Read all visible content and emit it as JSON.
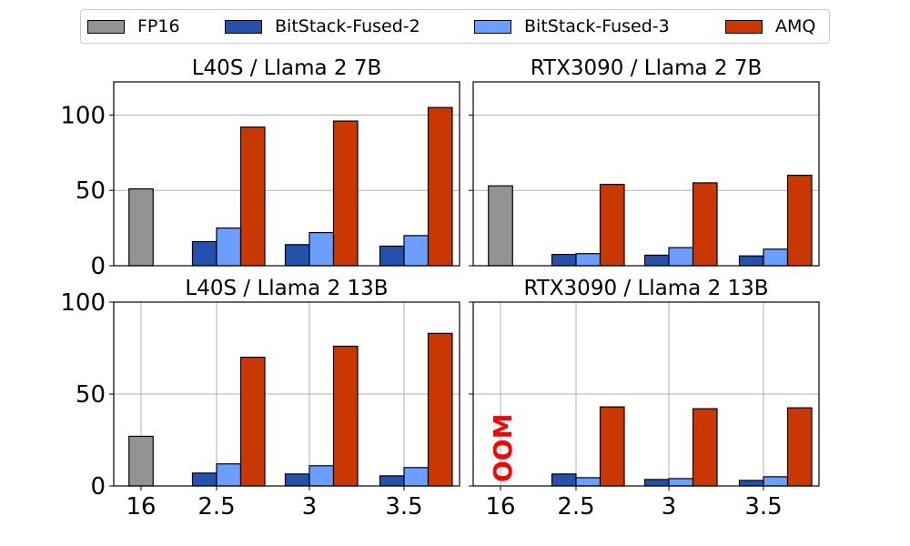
{
  "legend": {
    "items": [
      {
        "label": "FP16",
        "color": "#939393"
      },
      {
        "label": "BitStack-Fused-2",
        "color": "#2451ad"
      },
      {
        "label": "BitStack-Fused-3",
        "color": "#6b9eff"
      },
      {
        "label": "AMQ",
        "color": "#c93703"
      }
    ]
  },
  "chart_data": [
    {
      "type": "bar",
      "title": "L40S / Llama 2 7B",
      "categories": [
        "16",
        "2.5",
        "3",
        "3.5"
      ],
      "series": [
        {
          "name": "FP16",
          "values": [
            51,
            null,
            null,
            null
          ]
        },
        {
          "name": "BitStack-Fused-2",
          "values": [
            null,
            16,
            14,
            13
          ]
        },
        {
          "name": "BitStack-Fused-3",
          "values": [
            null,
            25,
            22,
            20
          ]
        },
        {
          "name": "AMQ",
          "values": [
            null,
            92,
            96,
            105
          ]
        }
      ],
      "ylim": [
        0,
        122
      ],
      "yticks": [
        0,
        50,
        100
      ],
      "grid": "horizontal"
    },
    {
      "type": "bar",
      "title": "RTX3090 / Llama 2 7B",
      "categories": [
        "16",
        "2.5",
        "3",
        "3.5"
      ],
      "series": [
        {
          "name": "FP16",
          "values": [
            53,
            null,
            null,
            null
          ]
        },
        {
          "name": "BitStack-Fused-2",
          "values": [
            null,
            7.5,
            7,
            6.5
          ]
        },
        {
          "name": "BitStack-Fused-3",
          "values": [
            null,
            8,
            12,
            11
          ]
        },
        {
          "name": "AMQ",
          "values": [
            null,
            54,
            55,
            60
          ]
        }
      ],
      "ylim": [
        0,
        122
      ],
      "yticks": [
        0,
        50,
        100
      ],
      "grid": "horizontal"
    },
    {
      "type": "bar",
      "title": "L40S / Llama 2 13B",
      "categories": [
        "16",
        "2.5",
        "3",
        "3.5"
      ],
      "series": [
        {
          "name": "FP16",
          "values": [
            27,
            null,
            null,
            null
          ]
        },
        {
          "name": "BitStack-Fused-2",
          "values": [
            null,
            7,
            6.5,
            5.5
          ]
        },
        {
          "name": "BitStack-Fused-3",
          "values": [
            null,
            12,
            11,
            10
          ]
        },
        {
          "name": "AMQ",
          "values": [
            null,
            70,
            76,
            83
          ]
        }
      ],
      "ylim": [
        0,
        100
      ],
      "yticks": [
        0,
        50,
        100
      ],
      "grid": "both"
    },
    {
      "type": "bar",
      "title": "RTX3090 / Llama 2 13B",
      "categories": [
        "16",
        "2.5",
        "3",
        "3.5"
      ],
      "series": [
        {
          "name": "FP16",
          "values": [
            null,
            null,
            null,
            null
          ]
        },
        {
          "name": "BitStack-Fused-2",
          "values": [
            null,
            6.5,
            3.5,
            3
          ]
        },
        {
          "name": "BitStack-Fused-3",
          "values": [
            null,
            4.5,
            4,
            5
          ]
        },
        {
          "name": "AMQ",
          "values": [
            null,
            43,
            42,
            42.5
          ]
        }
      ],
      "ylim": [
        0,
        100
      ],
      "yticks": [
        0,
        50,
        100
      ],
      "grid": "both",
      "annotation": {
        "text": "OOM",
        "color": "#ff0000"
      }
    }
  ]
}
